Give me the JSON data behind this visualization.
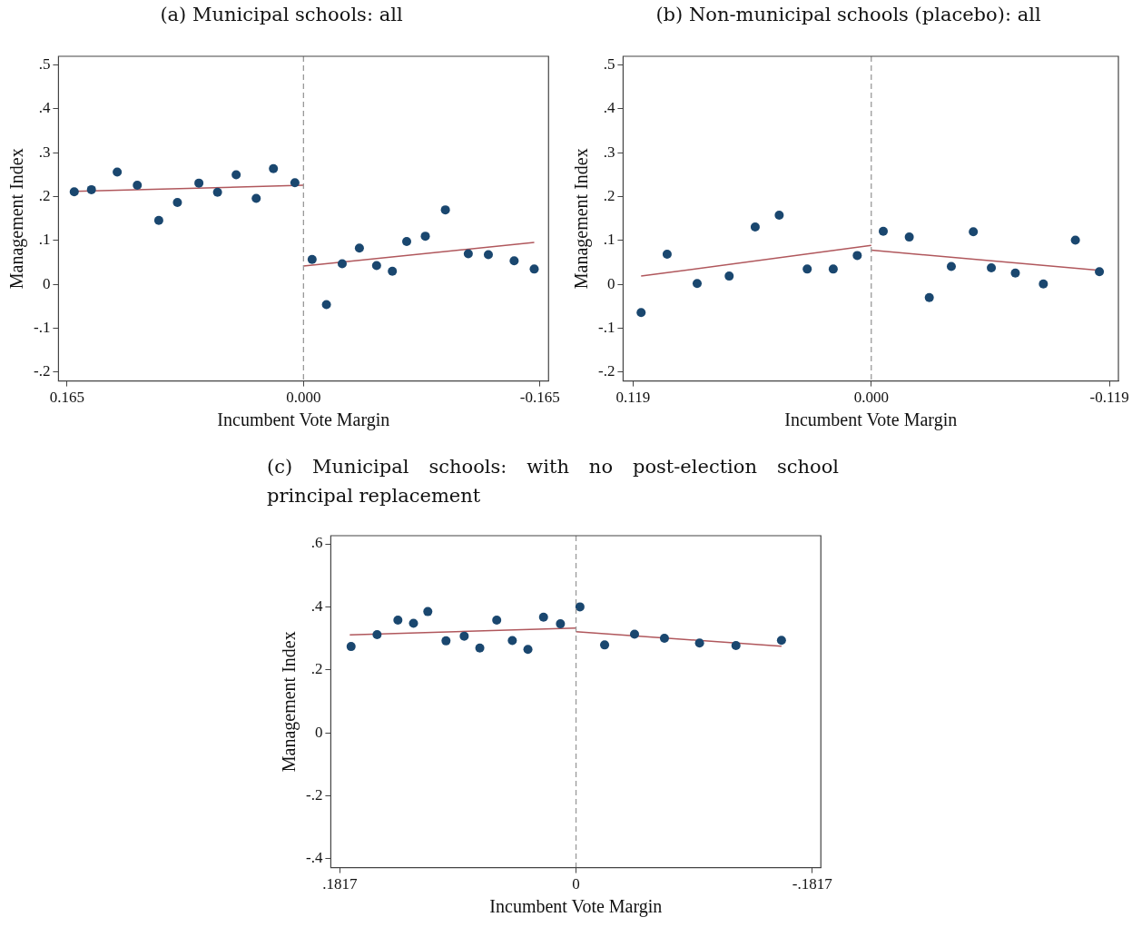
{
  "chart_data": [
    {
      "type": "scatter",
      "title": "(a) Municipal schools:  all",
      "xlabel": "Incumbent Vote Margin",
      "ylabel": "Management Index",
      "legend": false,
      "grid": false,
      "xlim": [
        0.171,
        -0.171
      ],
      "xticks": [
        0.165,
        {
          "value": 0,
          "label": "0.000"
        },
        -0.165
      ],
      "ylim": [
        -0.22,
        0.52
      ],
      "yticks": [
        {
          "value": -0.2,
          "label": "-.2"
        },
        {
          "value": -0.1,
          "label": "-.1"
        },
        {
          "value": 0,
          "label": "0"
        },
        {
          "value": 0.1,
          "label": ".1"
        },
        {
          "value": 0.2,
          "label": ".2"
        },
        {
          "value": 0.3,
          "label": ".3"
        },
        {
          "value": 0.4,
          "label": ".4"
        },
        {
          "value": 0.5,
          "label": ".5"
        }
      ],
      "ref_lines": [
        {
          "axis": "x",
          "value": 0,
          "color": "#999999",
          "line_style": "dashed"
        }
      ],
      "series": [
        {
          "marker": "circle",
          "color": "#1a476f",
          "x": [
            0.16,
            0.148,
            0.13,
            0.116,
            0.101,
            0.088,
            0.073,
            0.06,
            0.047,
            0.033,
            0.021,
            0.006,
            -0.006,
            -0.016,
            -0.027,
            -0.039,
            -0.051,
            -0.062,
            -0.072,
            -0.085,
            -0.099,
            -0.115,
            -0.129,
            -0.147,
            -0.161
          ],
          "values": [
            0.211,
            0.216,
            0.256,
            0.226,
            0.146,
            0.187,
            0.231,
            0.21,
            0.25,
            0.196,
            0.264,
            0.232,
            0.057,
            -0.046,
            0.047,
            0.083,
            0.043,
            0.03,
            0.098,
            0.11,
            0.17,
            0.07,
            0.068,
            0.054,
            0.035
          ]
        },
        {
          "type": "line",
          "marker": "none",
          "color": "#b0575c",
          "x": [
            0.16,
            0
          ],
          "values": [
            0.212,
            0.226
          ]
        },
        {
          "type": "line",
          "marker": "none",
          "color": "#b0575c",
          "x": [
            0,
            -0.161
          ],
          "values": [
            0.042,
            0.096
          ]
        }
      ]
    },
    {
      "type": "scatter",
      "title": "(b) Non-municipal schools (placebo):  all",
      "xlabel": "Incumbent Vote Margin",
      "ylabel": "Management Index",
      "legend": false,
      "grid": false,
      "xlim": [
        0.124,
        -0.1235
      ],
      "xticks": [
        0.119,
        {
          "value": 0,
          "label": "0.000"
        },
        -0.119
      ],
      "ylim": [
        -0.22,
        0.52
      ],
      "yticks": [
        {
          "value": -0.2,
          "label": "-.2"
        },
        {
          "value": -0.1,
          "label": "-.1"
        },
        {
          "value": 0,
          "label": "0"
        },
        {
          "value": 0.1,
          "label": ".1"
        },
        {
          "value": 0.2,
          "label": ".2"
        },
        {
          "value": 0.3,
          "label": ".3"
        },
        {
          "value": 0.4,
          "label": ".4"
        },
        {
          "value": 0.5,
          "label": ".5"
        }
      ],
      "ref_lines": [
        {
          "axis": "x",
          "value": 0,
          "color": "#999999",
          "line_style": "dashed"
        }
      ],
      "series": [
        {
          "marker": "circle",
          "color": "#1a476f",
          "x": [
            0.115,
            0.102,
            0.087,
            0.071,
            0.058,
            0.046,
            0.032,
            0.019,
            0.007,
            -0.006,
            -0.019,
            -0.029,
            -0.04,
            -0.051,
            -0.06,
            -0.072,
            -0.086,
            -0.102,
            -0.114
          ],
          "values": [
            -0.064,
            0.069,
            0.002,
            0.019,
            0.131,
            0.158,
            0.035,
            0.035,
            0.066,
            0.121,
            0.108,
            -0.03,
            0.041,
            0.12,
            0.038,
            0.026,
            0.001,
            0.101,
            0.029
          ]
        },
        {
          "type": "line",
          "marker": "none",
          "color": "#b0575c",
          "x": [
            0.115,
            0
          ],
          "values": [
            0.019,
            0.089
          ]
        },
        {
          "type": "line",
          "marker": "none",
          "color": "#b0575c",
          "x": [
            0,
            -0.114
          ],
          "values": [
            0.078,
            0.032
          ]
        }
      ]
    },
    {
      "type": "scatter",
      "title": "(c) Municipal schools:  with no post-election school principal replacement",
      "xlabel": "Incumbent Vote Margin",
      "ylabel": "Management Index",
      "legend": false,
      "grid": false,
      "xlim": [
        0.1886,
        -0.1883
      ],
      "xticks": [
        {
          "value": 0.1817,
          "label": ".1817"
        },
        {
          "value": 0,
          "label": "0"
        },
        {
          "value": -0.1817,
          "label": "-.1817"
        }
      ],
      "ylim": [
        -0.428,
        0.626
      ],
      "yticks": [
        {
          "value": -0.4,
          "label": "-.4"
        },
        {
          "value": -0.2,
          "label": "-.2"
        },
        {
          "value": 0,
          "label": "0"
        },
        {
          "value": 0.2,
          "label": ".2"
        },
        {
          "value": 0.4,
          "label": ".4"
        },
        {
          "value": 0.6,
          "label": ".6"
        }
      ],
      "ref_lines": [
        {
          "axis": "x",
          "value": 0,
          "color": "#999999",
          "line_style": "dashed"
        }
      ],
      "series": [
        {
          "marker": "circle",
          "color": "#1a476f",
          "x": [
            0.173,
            0.153,
            0.137,
            0.125,
            0.114,
            0.1,
            0.086,
            0.074,
            0.061,
            0.049,
            0.037,
            0.025,
            0.012,
            -0.003,
            -0.022,
            -0.045,
            -0.068,
            -0.095,
            -0.123,
            -0.158
          ],
          "values": [
            0.274,
            0.312,
            0.358,
            0.348,
            0.385,
            0.292,
            0.307,
            0.269,
            0.358,
            0.293,
            0.265,
            0.367,
            0.346,
            0.4,
            0.279,
            0.313,
            0.3,
            0.285,
            0.277,
            0.294
          ]
        },
        {
          "type": "line",
          "marker": "none",
          "color": "#b0575c",
          "x": [
            0.174,
            0
          ],
          "values": [
            0.311,
            0.333
          ]
        },
        {
          "type": "line",
          "marker": "none",
          "color": "#b0575c",
          "x": [
            0,
            -0.158
          ],
          "values": [
            0.321,
            0.275
          ]
        }
      ]
    }
  ]
}
